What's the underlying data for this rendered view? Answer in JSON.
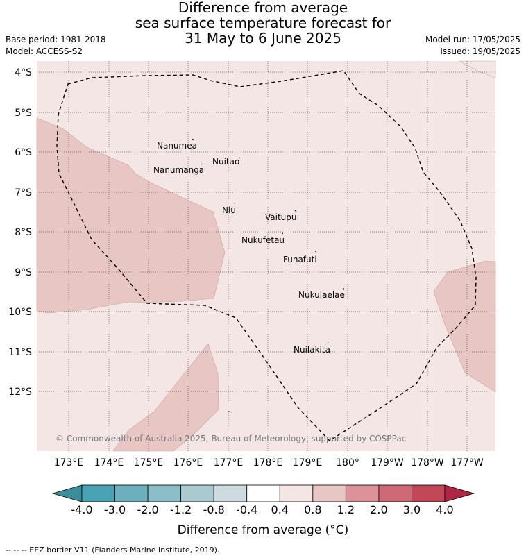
{
  "title": {
    "line1": "Difference from average",
    "line2": "sea surface temperature forecast for",
    "line3": "31 May to 6 June 2025"
  },
  "meta": {
    "base_period": "Base period: 1981-2018",
    "model": "Model: ACCESS-S2",
    "model_run": "Model run: 17/05/2025",
    "issued": "Issued: 19/05/2025"
  },
  "map": {
    "lat_labels": [
      "4°S",
      "5°S",
      "6°S",
      "7°S",
      "8°S",
      "9°S",
      "10°S",
      "11°S",
      "12°S"
    ],
    "lon_labels": [
      "173°E",
      "174°E",
      "175°E",
      "176°E",
      "177°E",
      "178°E",
      "179°E",
      "180°",
      "179°W",
      "178°W",
      "177°W"
    ],
    "islands": [
      "Nanumea",
      "Nanumanga",
      "Nuitao",
      "Niu",
      "Vaitupu",
      "Nukufetau",
      "Funafuti",
      "Nukulaelae",
      "Nuilakita"
    ],
    "copyright": "© Commonwealth of Australia 2025, Bureau of Meteorology, supported by COSPPac",
    "colors": {
      "band_0_4_0_8": "#f3e6e5",
      "band_0_8_1_2": "#e7c6c3",
      "ocean": "#f3e6e5"
    }
  },
  "colorbar": {
    "ticks": [
      "-4.0",
      "-3.0",
      "-2.0",
      "-1.2",
      "-0.8",
      "-0.4",
      "0.4",
      "0.8",
      "1.2",
      "2.0",
      "3.0",
      "4.0"
    ],
    "colors": [
      "#3c8f9a",
      "#4aa3b5",
      "#6dafbd",
      "#8cbec8",
      "#a9cad1",
      "#cddade",
      "#ffffff",
      "#f3e6e5",
      "#e7c6c3",
      "#dc9298",
      "#cd6a75",
      "#c24757",
      "#ae2545"
    ],
    "label": "Difference from average (°C)"
  },
  "footer": {
    "eez_note": "--  --  -- EEZ border V11 (Flanders Marine Institute, 2019)."
  }
}
